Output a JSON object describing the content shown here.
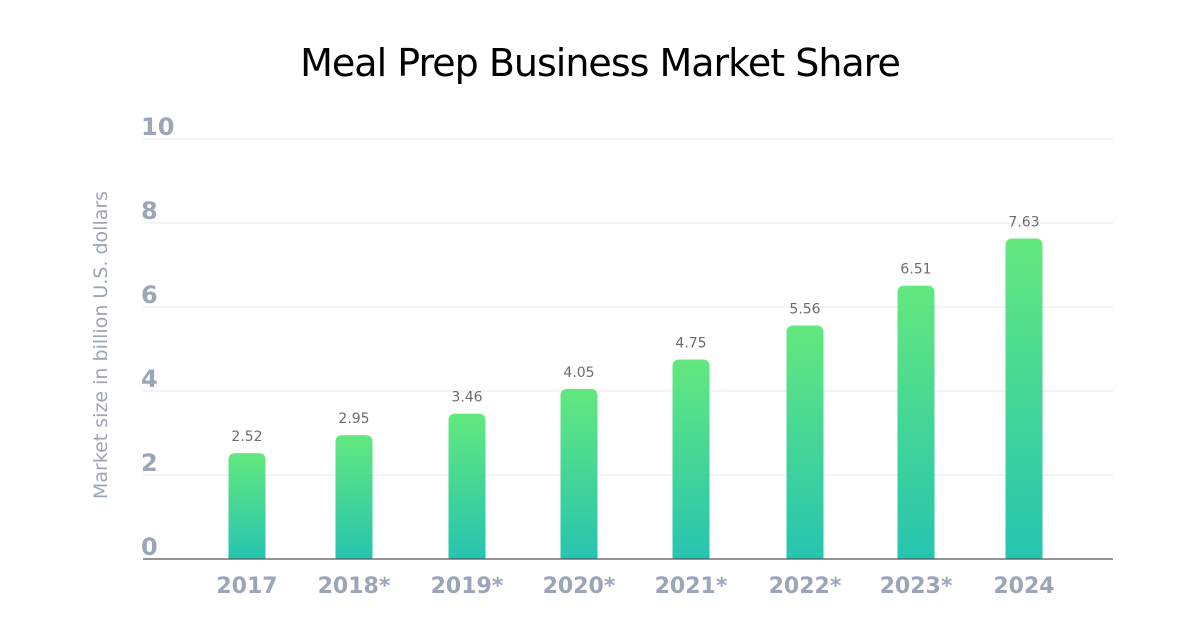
{
  "chart_data": {
    "type": "bar",
    "title": "Meal Prep Business Market Share",
    "xlabel": "",
    "ylabel": "Market size in billion  U.S. dollars",
    "categories": [
      "2017",
      "2018*",
      "2019*",
      "2020*",
      "2021*",
      "2022*",
      "2023*",
      "2024"
    ],
    "values": [
      2.52,
      2.95,
      3.46,
      4.05,
      4.75,
      5.56,
      6.51,
      7.63
    ],
    "data_labels": [
      "2.52",
      "2.95",
      "3.46",
      "4.05",
      "4.75",
      "5.56",
      "6.51",
      "7.63"
    ],
    "ylim": [
      0,
      10
    ],
    "yticks": [
      "0",
      "2",
      "4",
      "6",
      "8",
      "10"
    ],
    "grid": true,
    "colors": {
      "bar_top": "#63e87e",
      "bar_bottom": "#26c4b0",
      "grid": "#eaeaea",
      "axis": "#555555",
      "tick_text": "#9aa5b8"
    }
  }
}
